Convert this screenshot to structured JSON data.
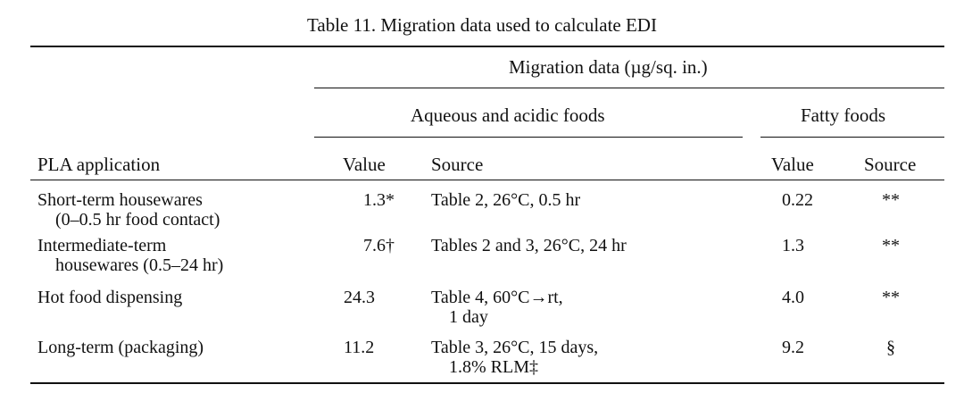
{
  "table": {
    "caption": "Table 11. Migration data used to calculate EDI",
    "header": {
      "group": "Migration data (µg/sq. in.)",
      "aqueous": "Aqueous and acidic foods",
      "fatty": "Fatty foods",
      "col_application": "PLA application",
      "col_aq_value": "Value",
      "col_aq_source": "Source",
      "col_fat_value": "Value",
      "col_fat_source": "Source"
    },
    "rows": [
      {
        "app_line1": "Short-term housewares",
        "app_line2": "(0–0.5 hr food contact)",
        "aq_value": "1.3*",
        "aq_source_line1": "Table 2, 26°C, 0.5 hr",
        "aq_source_line2": "",
        "fat_value": "0.22",
        "fat_source": "**"
      },
      {
        "app_line1": "Intermediate-term",
        "app_line2": "housewares (0.5–24 hr)",
        "aq_value": "7.6†",
        "aq_source_line1": "Tables 2 and 3, 26°C, 24 hr",
        "aq_source_line2": "",
        "fat_value": "1.3",
        "fat_source": "**"
      },
      {
        "app_line1": "Hot food dispensing",
        "app_line2": "",
        "aq_value": "24.3",
        "aq_source_line1": "Table 4, 60°C→rt,",
        "aq_source_line2": "1 day",
        "fat_value": "4.0",
        "fat_source": "**"
      },
      {
        "app_line1": "Long-term (packaging)",
        "app_line2": "",
        "aq_value": "11.2",
        "aq_source_line1": "Table 3, 26°C, 15 days,",
        "aq_source_line2": "1.8% RLM‡",
        "fat_value": "9.2",
        "fat_source": "§"
      }
    ]
  }
}
